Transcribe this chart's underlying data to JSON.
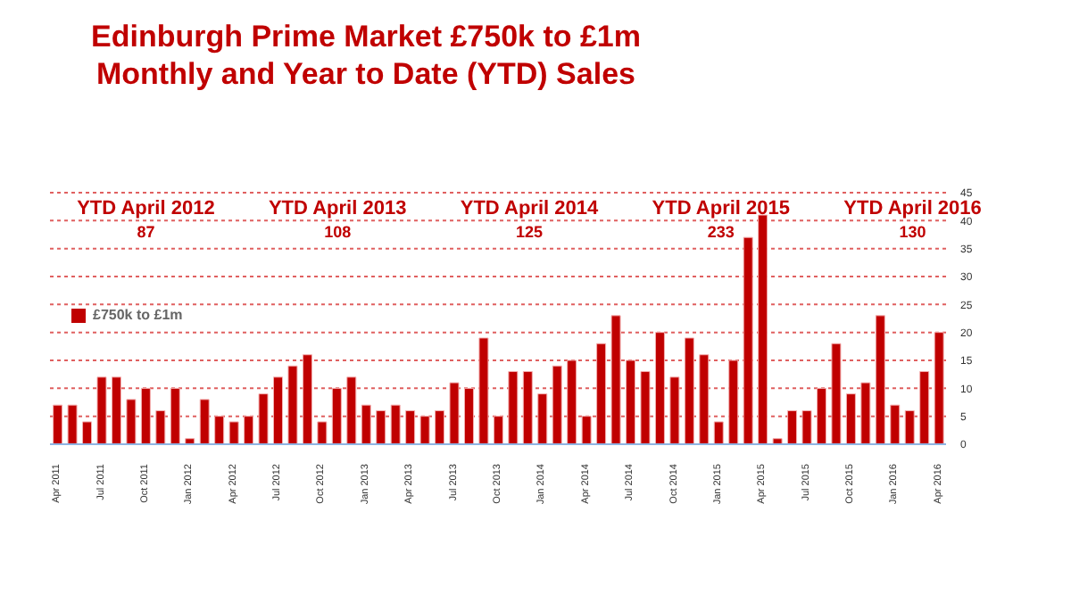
{
  "chart_data": {
    "type": "bar",
    "title": "Edinburgh Prime Market £750k to £1m\nMonthly and Year to Date (YTD) Sales",
    "annotations": [
      "YTD April 2012",
      "87",
      "YTD April 2013",
      "108",
      "YTD April 2014",
      "125",
      "YTD April 2015",
      "233",
      "YTD April 2016",
      "130"
    ],
    "categories": [
      "Apr 2011",
      null,
      null,
      "Jul 2011",
      null,
      null,
      "Oct 2011",
      null,
      null,
      "Jan 2012",
      null,
      null,
      "Apr 2012",
      null,
      null,
      "Jul 2012",
      null,
      null,
      "Oct 2012",
      null,
      null,
      "Jan 2013",
      null,
      null,
      "Apr 2013",
      null,
      null,
      "Jul 2013",
      null,
      null,
      "Oct 2013",
      null,
      null,
      "Jan 2014",
      null,
      null,
      "Apr 2014",
      null,
      null,
      "Jul 2014",
      null,
      null,
      "Oct 2014",
      null,
      null,
      "Jan 2015",
      null,
      null,
      "Apr 2015",
      null,
      null,
      "Jul 2015",
      null,
      null,
      "Oct 2015",
      null,
      null,
      "Jan 2016",
      null,
      null,
      "Apr 2016"
    ],
    "series": [
      {
        "name": "£750k to £1m",
        "color": "#c00000",
        "values": [
          7,
          7,
          4,
          12,
          12,
          8,
          10,
          6,
          10,
          1,
          8,
          5,
          4,
          5,
          9,
          12,
          14,
          16,
          4,
          10,
          12,
          7,
          6,
          7,
          6,
          5,
          6,
          11,
          10,
          19,
          5,
          13,
          13,
          9,
          14,
          15,
          5,
          18,
          23,
          15,
          13,
          20,
          12,
          19,
          16,
          4,
          15,
          37,
          41,
          1,
          6,
          6,
          10,
          18,
          9,
          11,
          23,
          7,
          6,
          13,
          20
        ]
      }
    ],
    "ylim": [
      0,
      45
    ],
    "yticks": [
      0,
      5,
      10,
      15,
      20,
      25,
      30,
      35,
      40,
      45
    ],
    "grid": "y",
    "legend": "left"
  }
}
